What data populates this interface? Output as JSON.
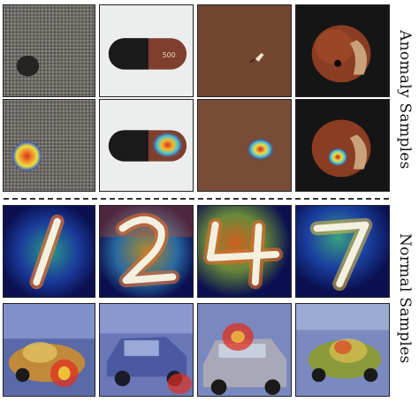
{
  "labels": {
    "anomaly": "Anomaly Samples",
    "normal": "Normal Samples"
  },
  "panels": {
    "anomaly_originals": [
      "carpet",
      "capsule",
      "leather",
      "hazelnut"
    ],
    "anomaly_heatmaps": [
      "carpet-heatmap",
      "capsule-heatmap",
      "leather-heatmap",
      "hazelnut-heatmap"
    ],
    "normal_digits": [
      "1",
      "2",
      "4",
      "7"
    ],
    "normal_cars": [
      "car-1",
      "car-2",
      "car-3",
      "car-4"
    ]
  },
  "colors": {
    "heat_red": "#e03020",
    "heat_yellow": "#f0e040",
    "heat_cyan": "#40c0e0",
    "heat_blue": "#10208a"
  }
}
